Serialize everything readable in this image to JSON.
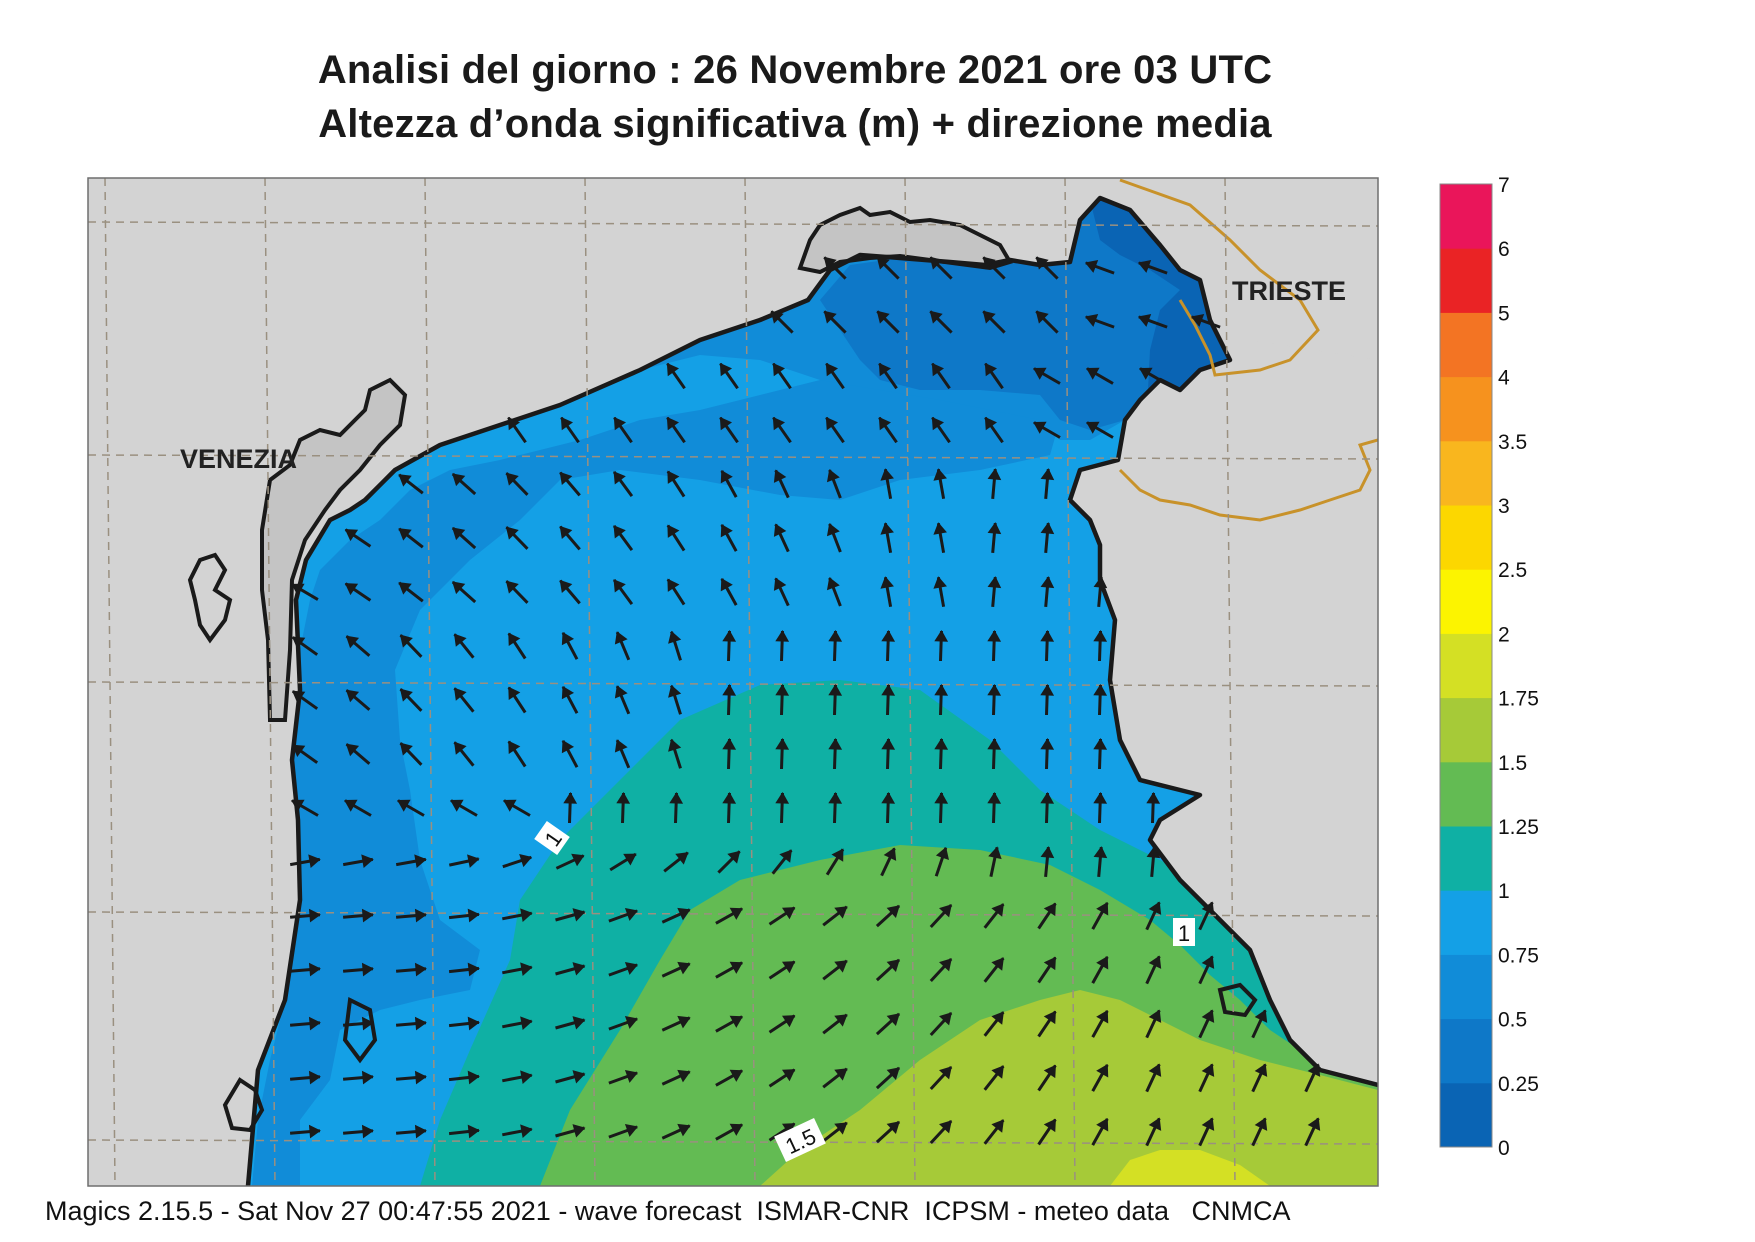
{
  "title": "Analisi del giorno :  26 Novembre  2021    ore 03 UTC",
  "subtitle": "Altezza d’onda significativa (m) + direzione media",
  "footer": "Magics 2.15.5 - Sat Nov 27 00:47:55 2021 - wave forecast  ISMAR-CNR  ICPSM - meteo data   CNMCA",
  "places": {
    "venezia": "VENEZIA",
    "trieste": "TRIESTE"
  },
  "contour_labels": [
    "1",
    "1",
    "1.5"
  ],
  "legend": {
    "levels": [
      "0",
      "0.25",
      "0.5",
      "0.75",
      "1",
      "1.25",
      "1.5",
      "1.75",
      "2",
      "2.5",
      "3",
      "3.5",
      "4",
      "5",
      "6",
      "7"
    ],
    "colors": [
      "#0a64b4",
      "#0e78c8",
      "#118cd8",
      "#14a0e6",
      "#0fb0a4",
      "#63bb53",
      "#a6ca38",
      "#d4e024",
      "#fcf400",
      "#fcd700",
      "#f9b61e",
      "#f6921e",
      "#f37423",
      "#ea2325",
      "#ea155a"
    ]
  },
  "colors": {
    "land": "#d3d3d3",
    "land_detail": "#c4c4c4",
    "coast": "#1a1a1a",
    "border": "#c8922a",
    "grid": "#9a9080"
  }
}
